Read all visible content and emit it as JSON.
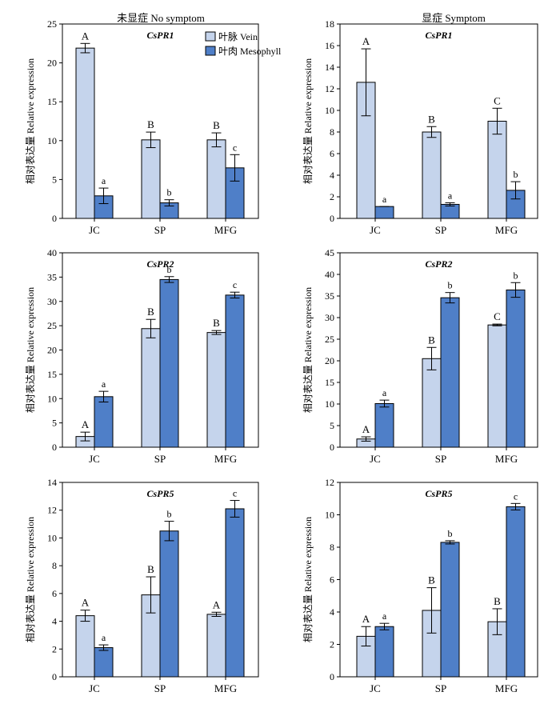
{
  "colors": {
    "vein": "#c5d4ec",
    "mesophyll": "#4f7fc8",
    "outline": "#000000"
  },
  "legend": {
    "vein_label": "叶脉 Vein",
    "mesophyll_label": "叶肉 Mesophyll"
  },
  "column_titles": {
    "left": "未显症 No symptom",
    "right": "显症 Symptom"
  },
  "ylabel": "相对表达量 Relative expression",
  "chart_data": [
    {
      "type": "bar",
      "gene": "CsPR1",
      "condition": "No symptom",
      "categories": [
        "JC",
        "SP",
        "MFG"
      ],
      "ylim": [
        0,
        25
      ],
      "yticks": [
        0,
        5,
        10,
        15,
        20,
        25
      ],
      "series": [
        {
          "name": "叶脉 Vein",
          "values": [
            21.9,
            10.1,
            10.1
          ],
          "errors": [
            0.6,
            1.0,
            0.9
          ],
          "letters": [
            "A",
            "B",
            "B"
          ]
        },
        {
          "name": "叶肉 Mesophyll",
          "values": [
            2.9,
            2.0,
            6.5
          ],
          "errors": [
            1.0,
            0.4,
            1.7
          ],
          "letters": [
            "a",
            "b",
            "c"
          ]
        }
      ]
    },
    {
      "type": "bar",
      "gene": "CsPR1",
      "condition": "Symptom",
      "categories": [
        "JC",
        "SP",
        "MFG"
      ],
      "ylim": [
        0,
        18
      ],
      "yticks": [
        0,
        2,
        4,
        6,
        8,
        10,
        12,
        14,
        16,
        18
      ],
      "series": [
        {
          "name": "叶脉 Vein",
          "values": [
            12.6,
            8.0,
            9.0
          ],
          "errors": [
            3.1,
            0.5,
            1.2
          ],
          "letters": [
            "A",
            "B",
            "C"
          ]
        },
        {
          "name": "叶肉 Mesophyll",
          "values": [
            1.1,
            1.3,
            2.6
          ],
          "errors": [
            0,
            0.15,
            0.8
          ],
          "letters": [
            "a",
            "a",
            "b"
          ]
        }
      ]
    },
    {
      "type": "bar",
      "gene": "CsPR2",
      "condition": "No symptom",
      "categories": [
        "JC",
        "SP",
        "MFG"
      ],
      "ylim": [
        0,
        40
      ],
      "yticks": [
        0,
        5,
        10,
        15,
        20,
        25,
        30,
        35,
        40
      ],
      "series": [
        {
          "name": "叶脉 Vein",
          "values": [
            2.2,
            24.4,
            23.6
          ],
          "errors": [
            0.9,
            1.9,
            0.4
          ],
          "letters": [
            "A",
            "B",
            "B"
          ]
        },
        {
          "name": "叶肉 Mesophyll",
          "values": [
            10.4,
            34.5,
            31.3
          ],
          "errors": [
            1.1,
            0.6,
            0.6
          ],
          "letters": [
            "a",
            "b",
            "c"
          ]
        }
      ]
    },
    {
      "type": "bar",
      "gene": "CsPR2",
      "condition": "Symptom",
      "categories": [
        "JC",
        "SP",
        "MFG"
      ],
      "ylim": [
        0,
        45
      ],
      "yticks": [
        0,
        5,
        10,
        15,
        20,
        25,
        30,
        35,
        40,
        45
      ],
      "series": [
        {
          "name": "叶脉 Vein",
          "values": [
            1.9,
            20.5,
            28.3
          ],
          "errors": [
            0.5,
            2.6,
            0.2
          ],
          "letters": [
            "A",
            "B",
            "C"
          ]
        },
        {
          "name": "叶肉 Mesophyll",
          "values": [
            10.1,
            34.6,
            36.4
          ],
          "errors": [
            0.8,
            1.2,
            1.7
          ],
          "letters": [
            "a",
            "b",
            "b"
          ]
        }
      ]
    },
    {
      "type": "bar",
      "gene": "CsPR5",
      "condition": "No symptom",
      "categories": [
        "JC",
        "SP",
        "MFG"
      ],
      "ylim": [
        0,
        14
      ],
      "yticks": [
        0,
        2,
        4,
        6,
        8,
        10,
        12,
        14
      ],
      "series": [
        {
          "name": "叶脉 Vein",
          "values": [
            4.4,
            5.9,
            4.5
          ],
          "errors": [
            0.4,
            1.3,
            0.15
          ],
          "letters": [
            "A",
            "B",
            "A"
          ]
        },
        {
          "name": "叶肉 Mesophyll",
          "values": [
            2.1,
            10.5,
            12.1
          ],
          "errors": [
            0.2,
            0.7,
            0.6
          ],
          "letters": [
            "a",
            "b",
            "c"
          ]
        }
      ]
    },
    {
      "type": "bar",
      "gene": "CsPR5",
      "condition": "Symptom",
      "categories": [
        "JC",
        "SP",
        "MFG"
      ],
      "ylim": [
        0,
        12
      ],
      "yticks": [
        0,
        2,
        4,
        6,
        8,
        10,
        12
      ],
      "series": [
        {
          "name": "叶脉 Vein",
          "values": [
            2.5,
            4.1,
            3.4
          ],
          "errors": [
            0.6,
            1.4,
            0.8
          ],
          "letters": [
            "A",
            "B",
            "B"
          ]
        },
        {
          "name": "叶肉 Mesophyll",
          "values": [
            3.1,
            8.3,
            10.5
          ],
          "errors": [
            0.2,
            0.1,
            0.2
          ],
          "letters": [
            "a",
            "b",
            "c"
          ]
        }
      ]
    }
  ]
}
